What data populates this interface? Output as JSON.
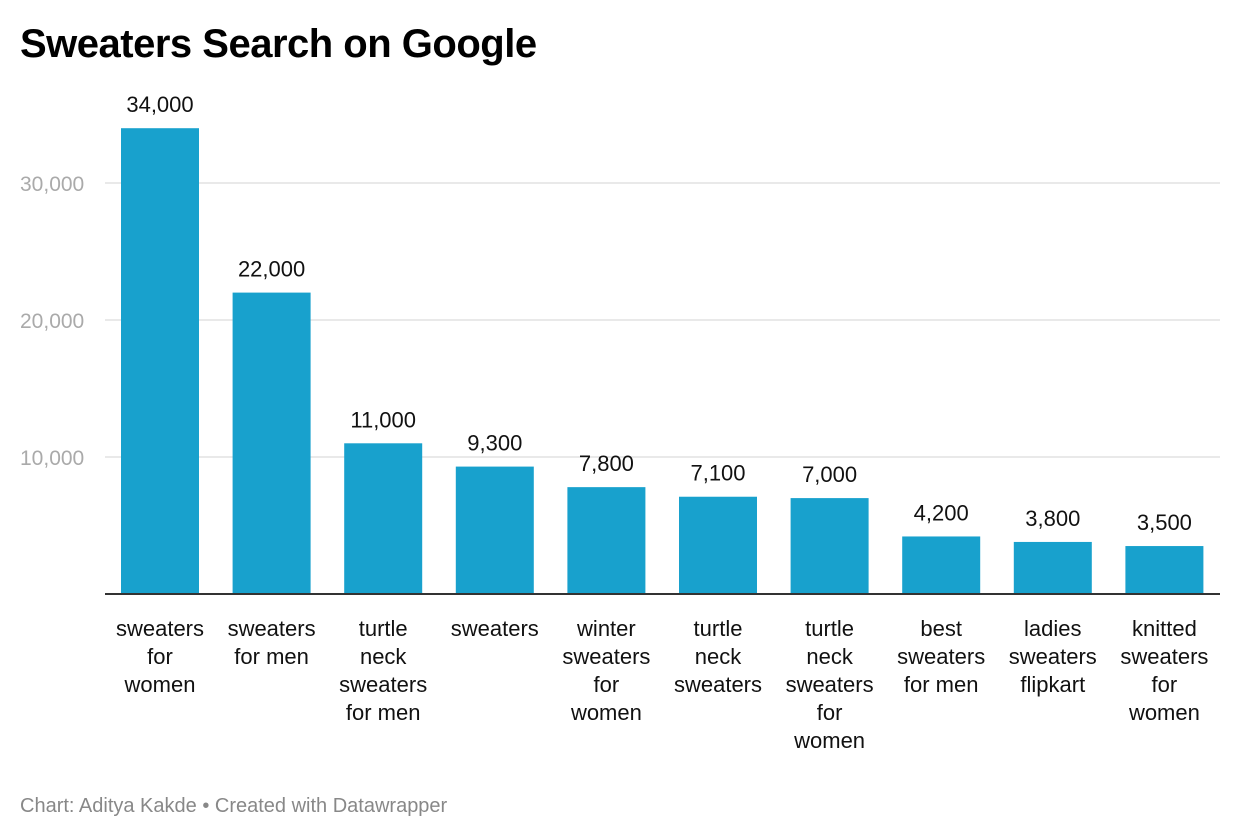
{
  "chart_title": "Sweaters Search on Google",
  "footer": "Chart: Aditya Kakde • Created with Datawrapper",
  "colors": {
    "bar": "#18a1cd",
    "grid": "#e2e2e2",
    "tick_label": "#aaaaaa",
    "axis": "#333333"
  },
  "chart_data": {
    "type": "bar",
    "title": "Sweaters Search on Google",
    "xlabel": "",
    "ylabel": "",
    "ylim": [
      0,
      35000
    ],
    "yticks": [
      10000,
      20000,
      30000
    ],
    "ytick_labels": [
      "10,000",
      "20,000",
      "30,000"
    ],
    "grid": true,
    "categories": [
      [
        "sweaters",
        "for",
        "women"
      ],
      [
        "sweaters",
        "for men"
      ],
      [
        "turtle",
        "neck",
        "sweaters",
        "for men"
      ],
      [
        "sweaters"
      ],
      [
        "winter",
        "sweaters",
        "for",
        "women"
      ],
      [
        "turtle",
        "neck",
        "sweaters"
      ],
      [
        "turtle",
        "neck",
        "sweaters",
        "for",
        "women"
      ],
      [
        "best",
        "sweaters",
        "for men"
      ],
      [
        "ladies",
        "sweaters",
        "flipkart"
      ],
      [
        "knitted",
        "sweaters",
        "for",
        "women"
      ]
    ],
    "values": [
      34000,
      22000,
      11000,
      9300,
      7800,
      7100,
      7000,
      4200,
      3800,
      3500
    ],
    "value_labels": [
      "34,000",
      "22,000",
      "11,000",
      "9,300",
      "7,800",
      "7,100",
      "7,000",
      "4,200",
      "3,800",
      "3,500"
    ]
  }
}
